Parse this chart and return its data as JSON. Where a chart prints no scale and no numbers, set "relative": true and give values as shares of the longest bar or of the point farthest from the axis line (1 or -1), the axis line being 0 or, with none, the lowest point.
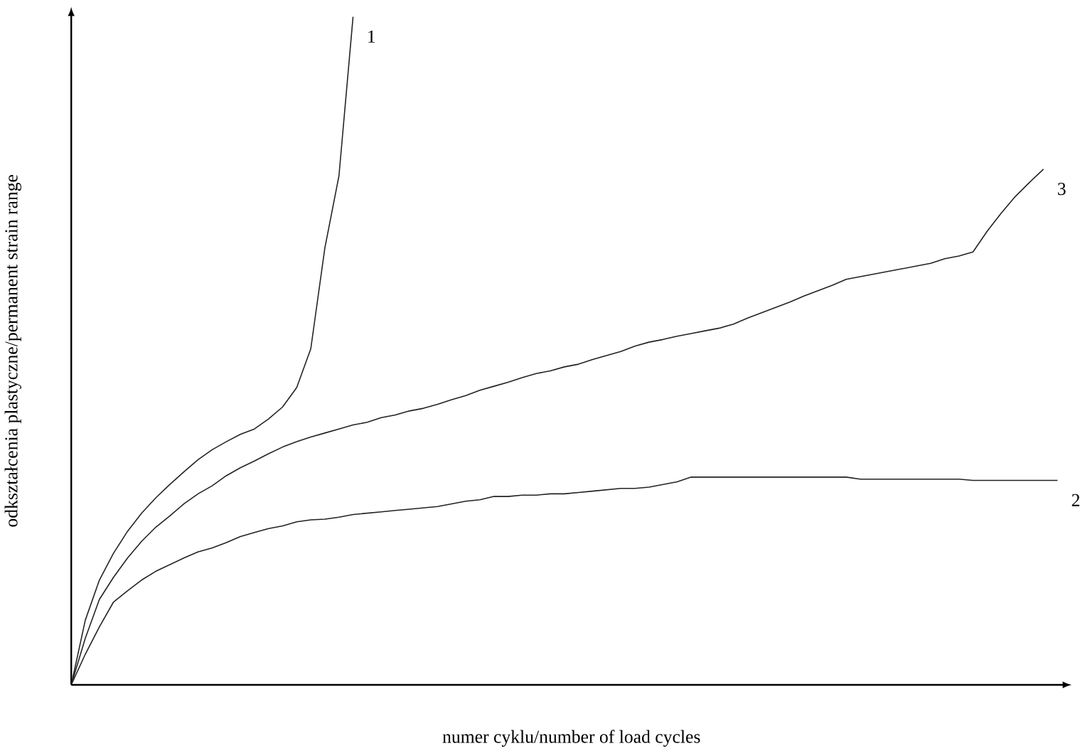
{
  "chart_data": {
    "type": "line",
    "relative": true,
    "xlabel": "numer cyklu/number of load cycles",
    "ylabel": "odkształcenia plastyczne/permanent strain range",
    "categories": [
      null,
      null,
      null,
      null,
      null,
      null,
      null,
      null,
      null,
      null,
      null,
      null,
      null,
      null,
      null,
      null,
      null,
      null,
      null,
      null,
      null,
      null,
      null,
      null,
      null,
      null,
      null,
      null,
      null,
      null,
      null,
      null,
      null,
      null,
      null,
      null,
      null,
      null,
      null,
      null,
      null,
      null,
      null,
      null,
      null,
      null,
      null,
      null,
      null,
      null,
      null,
      null,
      null,
      null,
      null,
      null,
      null,
      null,
      null,
      null,
      null,
      null,
      null,
      null,
      null,
      null,
      null,
      null,
      null,
      null,
      null
    ],
    "series": [
      {
        "name": "1",
        "color": "#222222",
        "values": [
          0,
          0.097,
          0.157,
          0.197,
          0.23,
          0.257,
          0.28,
          0.3,
          0.319,
          0.337,
          0.352,
          0.364,
          0.375,
          0.383,
          0.398,
          0.416,
          0.445,
          0.503,
          0.654,
          0.762,
          1,
          null,
          null,
          null,
          null,
          null,
          null,
          null,
          null,
          null,
          null,
          null,
          null,
          null,
          null,
          null,
          null,
          null,
          null,
          null,
          null,
          null,
          null,
          null,
          null,
          null,
          null,
          null,
          null,
          null,
          null,
          null,
          null,
          null,
          null,
          null,
          null,
          null,
          null,
          null,
          null,
          null,
          null,
          null,
          null,
          null,
          null,
          null,
          null,
          null,
          null
        ]
      },
      {
        "name": "2",
        "color": "#222222",
        "values": [
          0,
          0.046,
          0.087,
          0.124,
          0.141,
          0.157,
          0.17,
          0.18,
          0.19,
          0.199,
          0.205,
          0.213,
          0.222,
          0.228,
          0.234,
          0.238,
          0.244,
          0.247,
          0.248,
          0.251,
          0.255,
          0.257,
          0.259,
          0.261,
          0.263,
          0.265,
          0.267,
          0.271,
          0.275,
          0.277,
          0.282,
          0.282,
          0.284,
          0.284,
          0.286,
          0.286,
          0.288,
          0.29,
          0.292,
          0.294,
          0.294,
          0.296,
          0.3,
          0.304,
          0.311,
          0.311,
          0.311,
          0.311,
          0.311,
          0.311,
          0.311,
          0.311,
          0.311,
          0.311,
          0.311,
          0.311,
          0.308,
          0.308,
          0.308,
          0.308,
          0.308,
          0.308,
          0.308,
          0.308,
          0.306,
          0.306,
          0.306,
          0.306,
          0.306,
          0.306,
          0.306
        ]
      },
      {
        "name": "3",
        "color": "#222222",
        "values": [
          0,
          0.07,
          0.128,
          0.161,
          0.19,
          0.215,
          0.236,
          0.253,
          0.271,
          0.286,
          0.298,
          0.313,
          0.325,
          0.335,
          0.346,
          0.356,
          0.364,
          0.371,
          0.377,
          0.383,
          0.389,
          0.393,
          0.4,
          0.404,
          0.41,
          0.414,
          0.42,
          0.427,
          0.433,
          0.441,
          0.447,
          0.453,
          0.46,
          0.466,
          0.47,
          0.476,
          0.48,
          0.487,
          0.493,
          0.499,
          0.507,
          0.513,
          0.517,
          0.522,
          0.526,
          0.53,
          0.534,
          0.54,
          0.549,
          0.557,
          0.565,
          0.573,
          0.582,
          0.59,
          0.598,
          0.607,
          0.611,
          0.615,
          0.619,
          0.623,
          0.627,
          0.631,
          0.638,
          0.642,
          0.648,
          0.679,
          0.706,
          0.731,
          0.752,
          0.772,
          null
        ]
      }
    ]
  }
}
